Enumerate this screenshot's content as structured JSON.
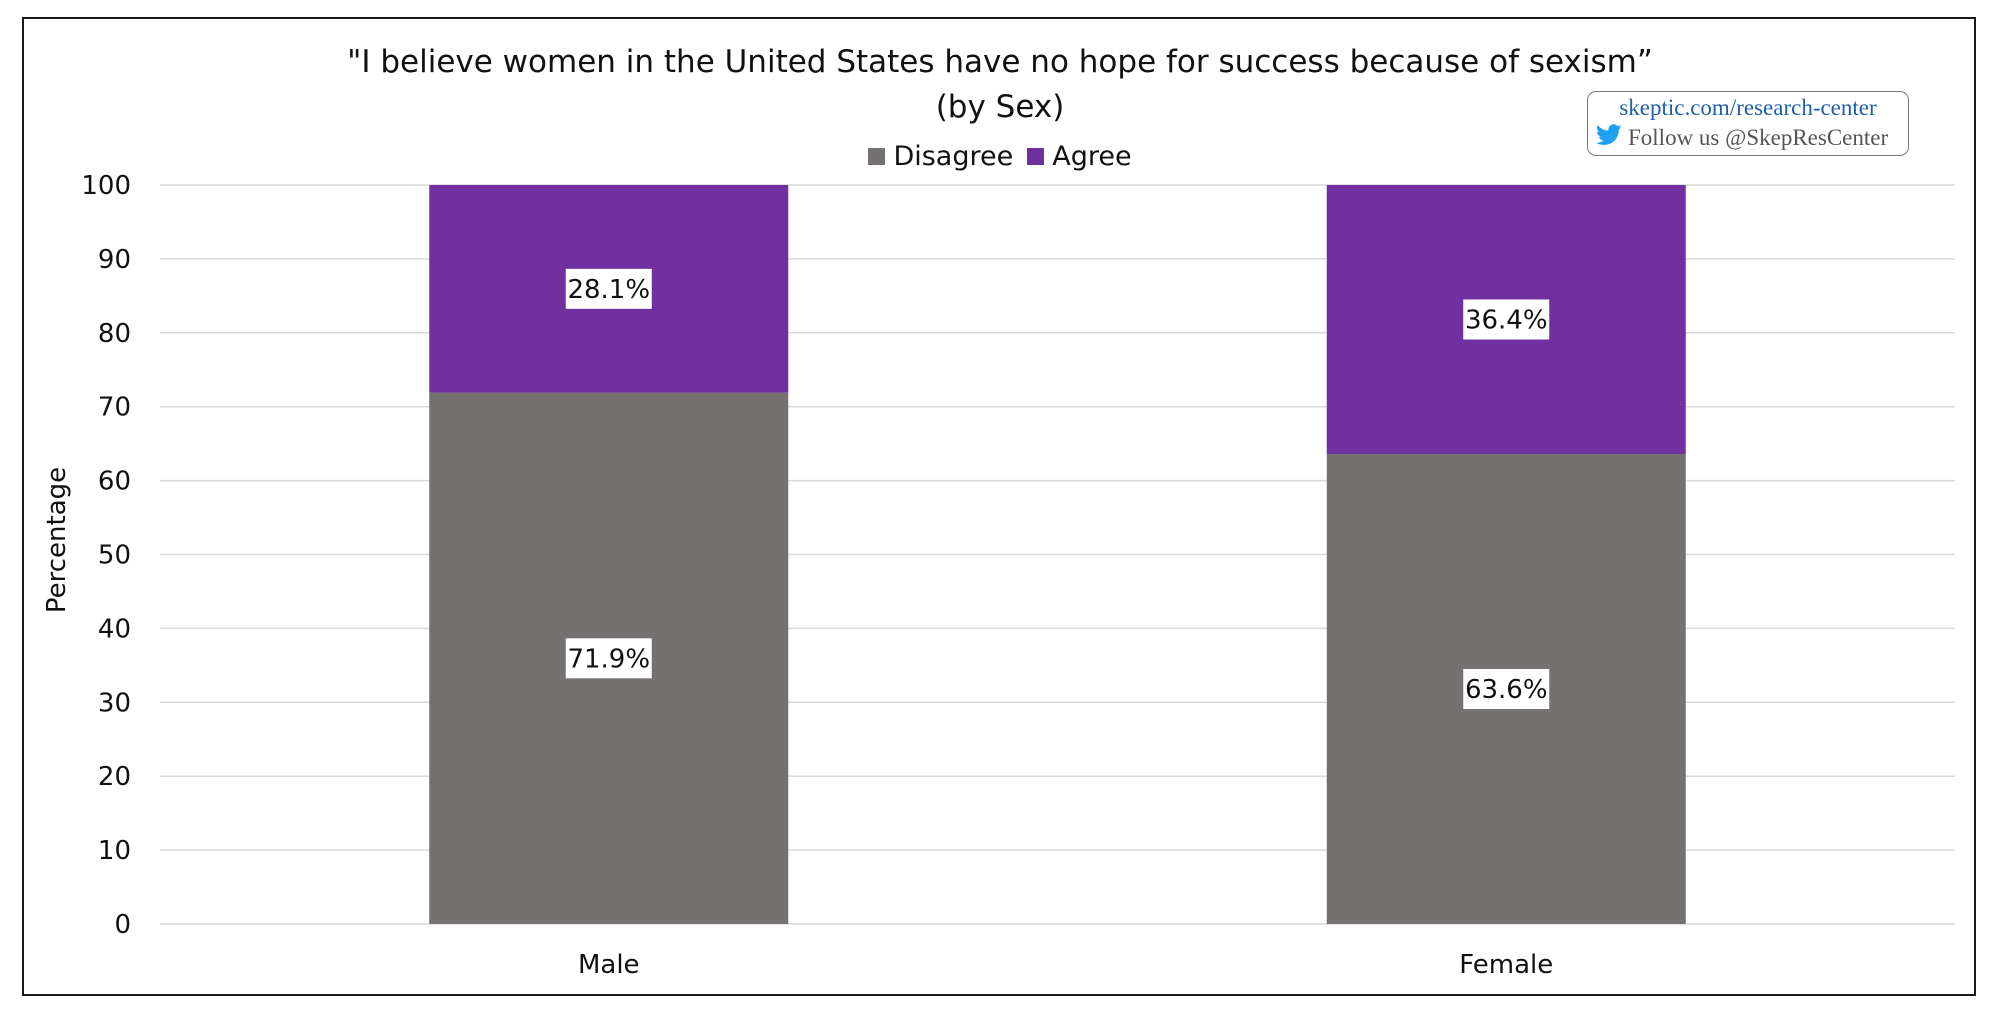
{
  "chart_data": {
    "type": "bar",
    "stacked": true,
    "title": "\"I believe women in the United States have no hope for success because of sexism”",
    "subtitle": "(by Sex)",
    "xlabel": "",
    "ylabel": "Percentage",
    "categories": [
      "Male",
      "Female"
    ],
    "series": [
      {
        "name": "Disagree",
        "values": [
          71.9,
          63.6
        ],
        "labels": [
          "71.9%",
          "63.6%"
        ],
        "color": "#767171"
      },
      {
        "name": "Agree",
        "values": [
          28.1,
          36.4
        ],
        "labels": [
          "28.1%",
          "36.4%"
        ],
        "color": "#7030a0"
      }
    ],
    "ylim": [
      0,
      100
    ],
    "yticks": [
      "0",
      "10",
      "20",
      "30",
      "40",
      "50",
      "60",
      "70",
      "80",
      "90",
      "100"
    ],
    "grid": true,
    "legend_position": "top"
  },
  "badge": {
    "url": "skeptic.com/research-center",
    "follow": "Follow us @SkepResCenter",
    "icon": "twitter-bird-icon"
  }
}
